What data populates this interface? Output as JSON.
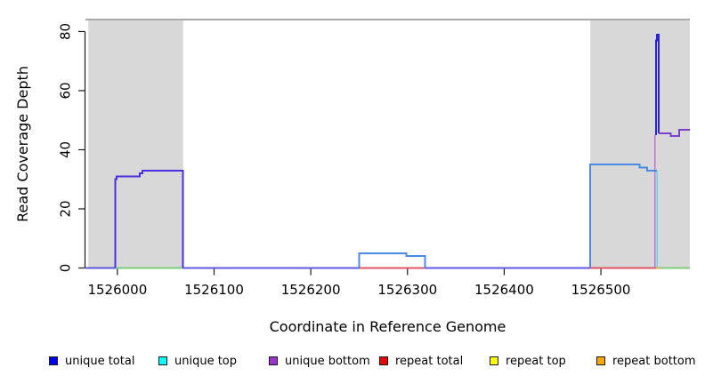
{
  "chart_data": {
    "type": "line",
    "subtype": "step-coverage",
    "title": "",
    "xlabel": "Coordinate in Reference Genome",
    "ylabel": "Read Coverage Depth",
    "xlim": [
      1525967,
      1526592
    ],
    "ylim": [
      0,
      84.2
    ],
    "xticks": [
      1526000,
      1526100,
      1526200,
      1526300,
      1526400,
      1526500
    ],
    "yticks": [
      0,
      20,
      40,
      60,
      80
    ],
    "grid": false,
    "colors": {
      "masked_region_fill": "#D8D8D8",
      "plot_top_border": "#8C8C8C",
      "axis": "#1a1a1a"
    },
    "shaded_regions": [
      {
        "name": "masked-region-left",
        "x0": 1525970,
        "x1": 1526068
      },
      {
        "name": "masked-region-right",
        "x0": 1526489,
        "x1": 1526592
      }
    ],
    "series": [
      {
        "name": "baseline-zero-1",
        "color": "#6157E0",
        "width": 2,
        "points": [
          [
            1525967,
            0
          ],
          [
            1525998,
            0
          ]
        ]
      },
      {
        "name": "baseline-zero-green-left",
        "color": "#7FCC7F",
        "width": 1.6,
        "points": [
          [
            1525998,
            0
          ],
          [
            1526068,
            0
          ]
        ]
      },
      {
        "name": "baseline-zero-2",
        "color": "#6157E0",
        "width": 2,
        "points": [
          [
            1526068,
            0
          ],
          [
            1526250,
            0
          ]
        ]
      },
      {
        "name": "baseline-zero-red-mid",
        "color": "#E05565",
        "width": 1.6,
        "points": [
          [
            1526250,
            0
          ],
          [
            1526318,
            0
          ]
        ]
      },
      {
        "name": "baseline-zero-3",
        "color": "#6157E0",
        "width": 2,
        "points": [
          [
            1526318,
            0
          ],
          [
            1526489,
            0
          ]
        ]
      },
      {
        "name": "baseline-zero-red-right",
        "color": "#E05565",
        "width": 1.6,
        "points": [
          [
            1526489,
            0
          ],
          [
            1526557,
            0
          ]
        ]
      },
      {
        "name": "baseline-zero-orange",
        "color": "#FFA520",
        "width": 2,
        "points": [
          [
            1526557,
            0
          ],
          [
            1526561,
            0
          ]
        ]
      },
      {
        "name": "baseline-zero-green-right",
        "color": "#7FCC7F",
        "width": 1.6,
        "points": [
          [
            1526561,
            0
          ],
          [
            1526592,
            0
          ]
        ]
      },
      {
        "name": "unique-top-drop",
        "color": "#5FD8E8",
        "width": 1.6,
        "points": [
          [
            1526558,
            33
          ],
          [
            1526558,
            0
          ]
        ]
      },
      {
        "name": "unique-bottom-drop",
        "color": "#C96BDB",
        "width": 1.6,
        "points": [
          [
            1526556,
            45
          ],
          [
            1526556,
            0
          ]
        ]
      },
      {
        "name": "unique-coverage-left-block",
        "color": "#4B2FE0",
        "width": 2,
        "points": [
          [
            1525998,
            0
          ],
          [
            1525998,
            30
          ],
          [
            1525999,
            30
          ],
          [
            1525999,
            31
          ],
          [
            1526023,
            31
          ],
          [
            1526023,
            32
          ],
          [
            1526026,
            32
          ],
          [
            1526026,
            33
          ],
          [
            1526068,
            33
          ],
          [
            1526068,
            0
          ]
        ]
      },
      {
        "name": "coverage-mid-bump",
        "color": "#4A8AE4",
        "width": 2,
        "points": [
          [
            1526250,
            0
          ],
          [
            1526250,
            5
          ],
          [
            1526299,
            5
          ],
          [
            1526299,
            4
          ],
          [
            1526318,
            4
          ],
          [
            1526318,
            0
          ]
        ]
      },
      {
        "name": "coverage-right-block",
        "color": "#4A8AE4",
        "width": 2,
        "points": [
          [
            1526489,
            0
          ],
          [
            1526489,
            35
          ],
          [
            1526540,
            35
          ],
          [
            1526540,
            34
          ],
          [
            1526548,
            34
          ],
          [
            1526548,
            33
          ],
          [
            1526558,
            33
          ]
        ]
      },
      {
        "name": "coverage-spike",
        "color": "#2B22DD",
        "width": 2,
        "points": [
          [
            1526557,
            45
          ],
          [
            1526557,
            77
          ],
          [
            1526558,
            77
          ],
          [
            1526558,
            79
          ],
          [
            1526560,
            79
          ],
          [
            1526560,
            45.5
          ]
        ]
      },
      {
        "name": "unique-bottom-right-line",
        "color": "#7B3FD4",
        "width": 2,
        "points": [
          [
            1526560,
            45.5
          ],
          [
            1526572,
            45.5
          ],
          [
            1526572,
            44.6
          ],
          [
            1526581,
            44.6
          ],
          [
            1526581,
            46.8
          ],
          [
            1526592,
            46.8
          ]
        ]
      }
    ],
    "legend_position": "bottom",
    "legend": [
      {
        "label": "unique total",
        "color": "#0000EE"
      },
      {
        "label": "unique top",
        "color": "#00FFFF"
      },
      {
        "label": "unique bottom",
        "color": "#9A32CD"
      },
      {
        "label": "repeat total",
        "color": "#EE0000"
      },
      {
        "label": "repeat top",
        "color": "#FFFF00"
      },
      {
        "label": "repeat bottom",
        "color": "#FFA500"
      }
    ]
  }
}
